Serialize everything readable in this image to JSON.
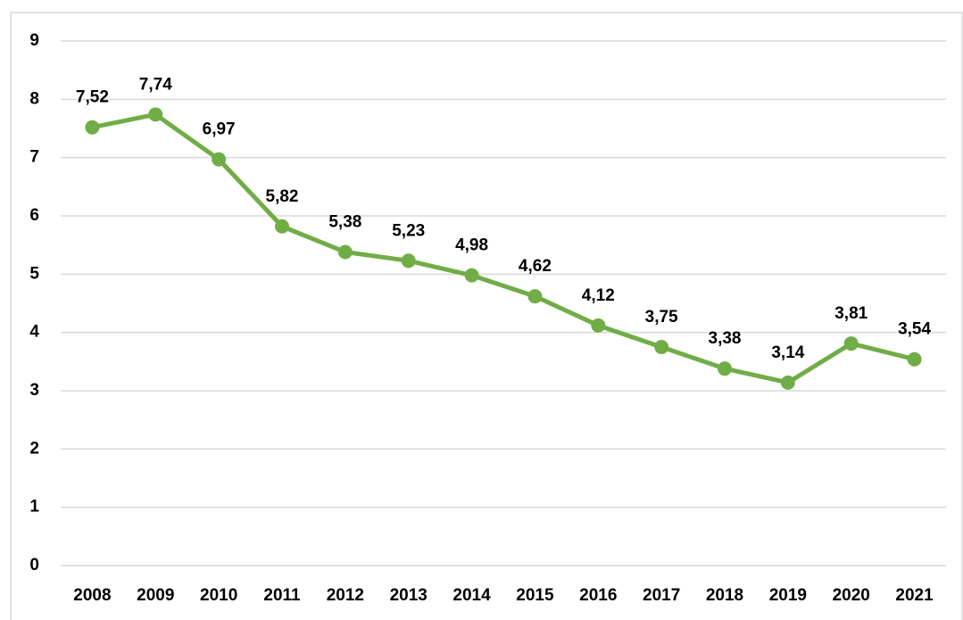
{
  "chart_data": {
    "type": "line",
    "categories": [
      "2008",
      "2009",
      "2010",
      "2011",
      "2012",
      "2013",
      "2014",
      "2015",
      "2016",
      "2017",
      "2018",
      "2019",
      "2020",
      "2021"
    ],
    "values": [
      7.52,
      7.74,
      6.97,
      5.82,
      5.38,
      5.23,
      4.98,
      4.62,
      4.12,
      3.75,
      3.38,
      3.14,
      3.81,
      3.54
    ],
    "value_labels": [
      "7,52",
      "7,74",
      "6,97",
      "5,82",
      "5,38",
      "5,23",
      "4,98",
      "4,62",
      "4,12",
      "3,75",
      "3,38",
      "3,14",
      "3,81",
      "3,54"
    ],
    "color": "#70ad47",
    "ylim": [
      0,
      9
    ],
    "yticks": [
      0,
      1,
      2,
      3,
      4,
      5,
      6,
      7,
      8,
      9
    ],
    "grid": true
  }
}
